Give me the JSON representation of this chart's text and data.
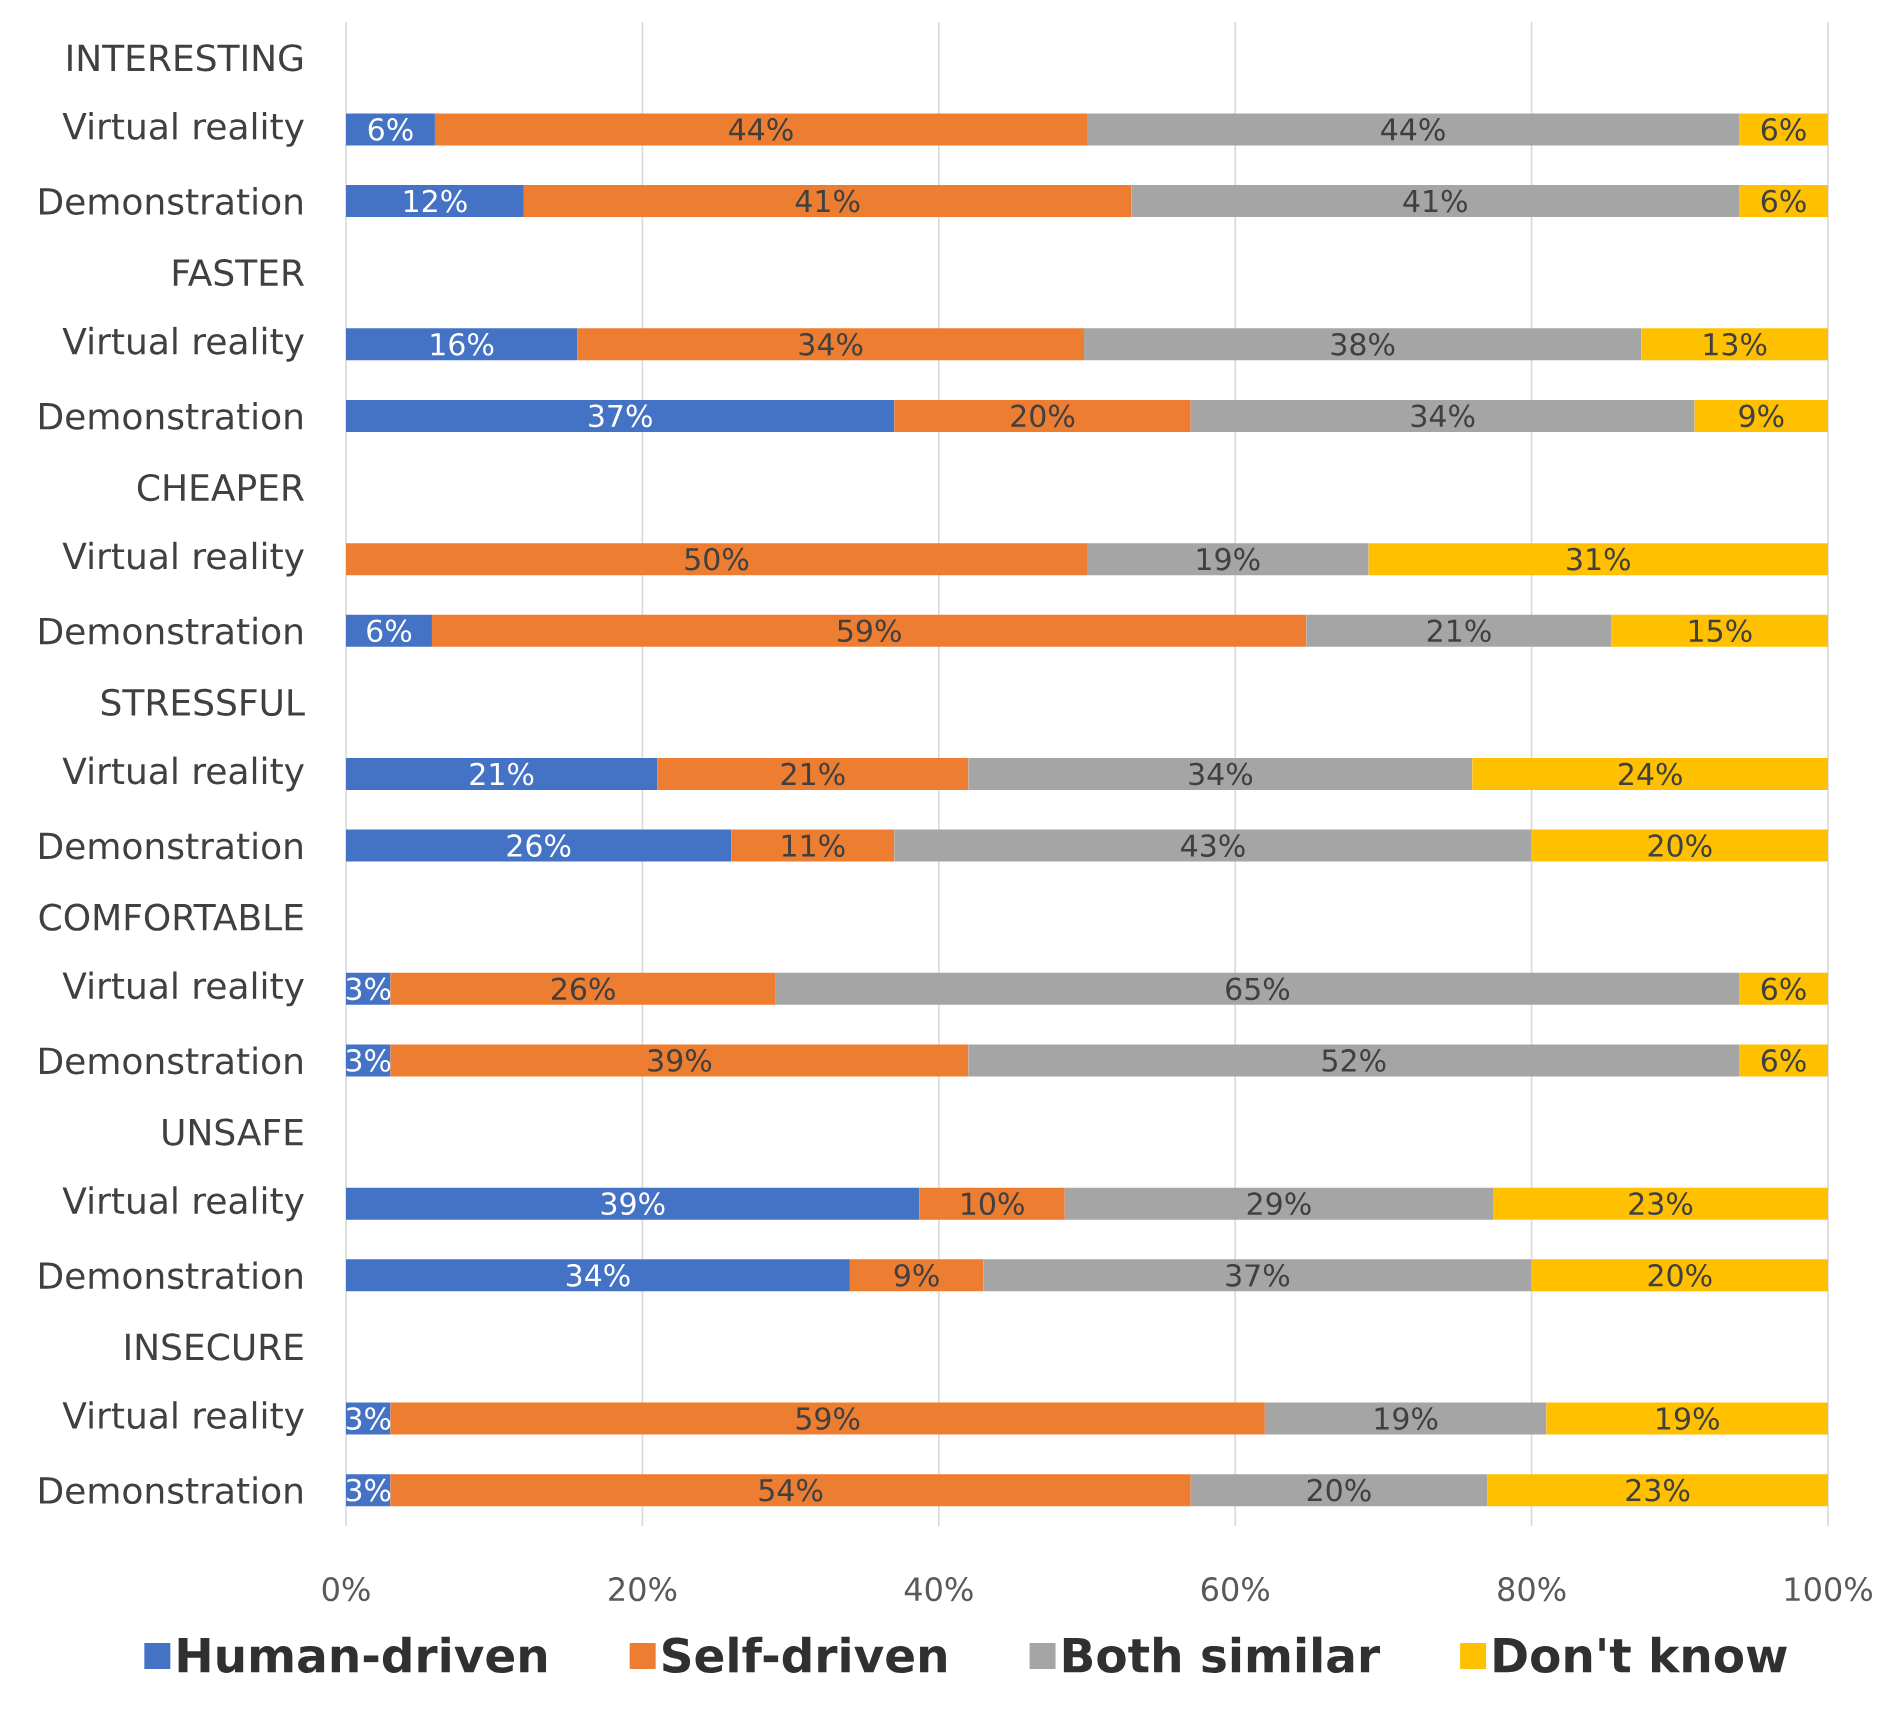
{
  "chart_data": {
    "type": "bar",
    "orientation": "horizontal",
    "stacked": true,
    "categories": [
      "INTERESTING",
      "Virtual reality",
      "Demonstration",
      "FASTER",
      "Virtual reality",
      "Demonstration",
      "CHEAPER",
      "Virtual reality",
      "Demonstration",
      "STRESSFUL",
      "Virtual reality",
      "Demonstration",
      "COMFORTABLE",
      "Virtual reality",
      "Demonstration",
      "UNSAFE",
      "Virtual reality",
      "Demonstration",
      "INSECURE",
      "Virtual reality",
      "Demonstration"
    ],
    "series": [
      {
        "name": "Human-driven",
        "color": "#4472c4",
        "values": [
          null,
          6,
          12,
          null,
          15.6,
          37,
          null,
          0,
          5.8,
          null,
          21,
          26,
          null,
          3,
          3,
          null,
          38.7,
          34,
          null,
          3,
          3
        ],
        "value_labels": [
          null,
          "6%",
          "12%",
          null,
          "16%",
          "37%",
          null,
          null,
          "6%",
          null,
          "21%",
          "26%",
          null,
          "3%",
          "3%",
          null,
          "39%",
          "34%",
          null,
          "3%",
          "3%"
        ]
      },
      {
        "name": "Self-driven",
        "color": "#ed7d31",
        "values": [
          null,
          44,
          41,
          null,
          34.2,
          20,
          null,
          50,
          59,
          null,
          21,
          11,
          null,
          26,
          39,
          null,
          9.8,
          9,
          null,
          59,
          54
        ],
        "value_labels": [
          null,
          "44%",
          "41%",
          null,
          "34%",
          "20%",
          null,
          "50%",
          "59%",
          null,
          "21%",
          "11%",
          null,
          "26%",
          "39%",
          null,
          "10%",
          "9%",
          null,
          "59%",
          "54%"
        ]
      },
      {
        "name": "Both similar",
        "color": "#a5a5a5",
        "values": [
          null,
          44,
          41,
          null,
          37.6,
          34,
          null,
          19,
          20.6,
          null,
          34,
          43,
          null,
          65,
          52,
          null,
          28.9,
          37,
          null,
          19,
          20
        ],
        "value_labels": [
          null,
          "44%",
          "41%",
          null,
          "38%",
          "34%",
          null,
          "19%",
          "21%",
          null,
          "34%",
          "43%",
          null,
          "65%",
          "52%",
          null,
          "29%",
          "37%",
          null,
          "19%",
          "20%"
        ]
      },
      {
        "name": "Don't know",
        "color": "#ffc000",
        "values": [
          null,
          6,
          6,
          null,
          12.6,
          9,
          null,
          31,
          14.6,
          null,
          24,
          20,
          null,
          6,
          6,
          null,
          22.6,
          20,
          null,
          19,
          23
        ],
        "value_labels": [
          null,
          "6%",
          "6%",
          null,
          "13%",
          "9%",
          null,
          "31%",
          "15%",
          null,
          "24%",
          "20%",
          null,
          "6%",
          "6%",
          null,
          "23%",
          "20%",
          null,
          "19%",
          "23%"
        ]
      }
    ],
    "xlim": [
      0,
      100
    ],
    "xticks": [
      {
        "value": 0,
        "label": "0%"
      },
      {
        "value": 20,
        "label": "20%"
      },
      {
        "value": 40,
        "label": "40%"
      },
      {
        "value": 60,
        "label": "60%"
      },
      {
        "value": 80,
        "label": "80%"
      },
      {
        "value": 100,
        "label": "100%"
      }
    ],
    "grid": "x",
    "legend": "bottom"
  }
}
